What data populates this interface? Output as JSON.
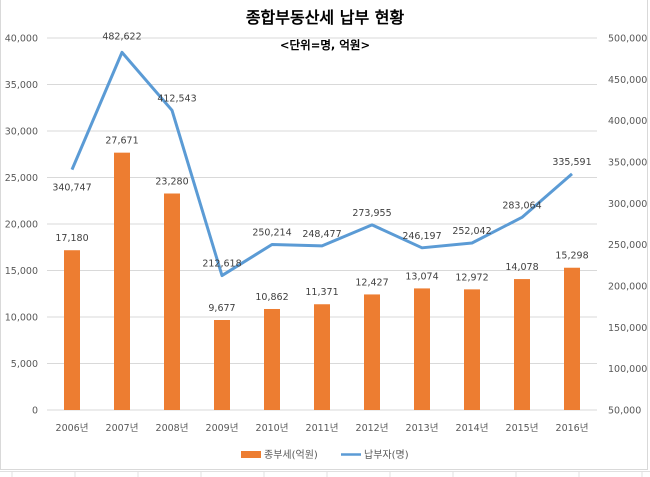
{
  "chart_data": {
    "type": "bar",
    "title": "종합부동산세 납부 현황",
    "subtitle": "<단위=명, 억원>",
    "categories": [
      "2006년",
      "2007년",
      "2008년",
      "2009년",
      "2010년",
      "2011년",
      "2012년",
      "2013년",
      "2014년",
      "2015년",
      "2016년"
    ],
    "series": [
      {
        "name": "종부세(억원)",
        "type": "bar",
        "axis": "left",
        "color": "#ED7D31",
        "values": [
          17180,
          27671,
          23280,
          9677,
          10862,
          11371,
          12427,
          13074,
          12972,
          14078,
          15298
        ],
        "labels": [
          "17,180",
          "27,671",
          "23,280",
          "9,677",
          "10,862",
          "11,371",
          "12,427",
          "13,074",
          "12,972",
          "14,078",
          "15,298"
        ]
      },
      {
        "name": "납부자(명)",
        "type": "line",
        "axis": "right",
        "color": "#5B9BD5",
        "values": [
          340747,
          482622,
          412543,
          212618,
          250214,
          248477,
          273955,
          246197,
          252042,
          283064,
          335591
        ],
        "labels": [
          "340,747",
          "482,622",
          "412,543",
          "212,618",
          "250,214",
          "248,477",
          "273,955",
          "246,197",
          "252,042",
          "283,064",
          "335,591"
        ]
      }
    ],
    "left_axis": {
      "ylim": [
        0,
        40000
      ],
      "ticks": [
        0,
        5000,
        10000,
        15000,
        20000,
        25000,
        30000,
        35000,
        40000
      ],
      "tick_labels": [
        "0",
        "5,000",
        "10,000",
        "15,000",
        "20,000",
        "25,000",
        "30,000",
        "35,000",
        "40,000"
      ]
    },
    "right_axis": {
      "ylim": [
        50000,
        500000
      ],
      "ticks": [
        50000,
        100000,
        150000,
        200000,
        250000,
        300000,
        350000,
        400000,
        450000,
        500000
      ],
      "tick_labels": [
        "50,000",
        "100,000",
        "150,000",
        "200,000",
        "250,000",
        "300,000",
        "350,000",
        "400,000",
        "450,000",
        "500,000"
      ]
    },
    "xlabel": "",
    "ylabel": "",
    "grid": true,
    "legend": "bottom"
  },
  "colors": {
    "grid": "#d9d9d9",
    "bar": "#ED7D31",
    "line": "#5B9BD5"
  }
}
